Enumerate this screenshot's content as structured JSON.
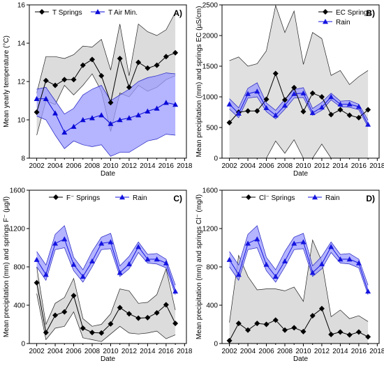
{
  "chart_data": [
    {
      "type": "line",
      "panel_label": "A)",
      "xlabel": "Date",
      "ylabel": "Mean yearly temperature (°C)",
      "xlim": [
        2001.2,
        2018.2
      ],
      "ylim": [
        8,
        16
      ],
      "xticks": [
        2002,
        2004,
        2006,
        2008,
        2010,
        2012,
        2014,
        2016,
        2018
      ],
      "yticks": [
        8,
        10,
        12,
        14,
        16
      ],
      "legend_position": "top-left",
      "series": [
        {
          "name": "T Springs",
          "marker": "diamond",
          "color": "#000000",
          "x": [
            2002,
            2003,
            2004,
            2005,
            2006,
            2007,
            2008,
            2009,
            2010,
            2011,
            2012,
            2013,
            2014,
            2015,
            2016,
            2017
          ],
          "values": [
            10.4,
            12.05,
            11.8,
            12.1,
            12.1,
            12.85,
            13.15,
            12.3,
            10.9,
            13.2,
            11.7,
            13.0,
            12.7,
            12.85,
            13.3,
            13.5
          ],
          "upper": [
            11.4,
            13.3,
            13.3,
            13.2,
            13.4,
            13.85,
            13.8,
            14.2,
            12.6,
            15.0,
            12.3,
            15.0,
            14.6,
            14.4,
            14.7,
            15.6
          ],
          "lower": [
            9.2,
            11.0,
            10.8,
            11.8,
            11.3,
            11.8,
            12.4,
            11.5,
            9.4,
            11.4,
            11.2,
            11.8,
            11.5,
            11.7,
            12.1,
            12.3
          ],
          "band_color": "#dcdcdc"
        },
        {
          "name": "T Air Min.",
          "marker": "triangle",
          "color": "#0a0ad8",
          "x": [
            2002,
            2003,
            2004,
            2005,
            2006,
            2007,
            2008,
            2009,
            2010,
            2011,
            2012,
            2013,
            2014,
            2015,
            2016,
            2017
          ],
          "values": [
            11.1,
            11.1,
            10.35,
            9.35,
            9.65,
            10.0,
            10.1,
            10.25,
            9.8,
            10.0,
            10.1,
            10.25,
            10.45,
            10.6,
            10.9,
            10.8
          ],
          "upper": [
            11.6,
            11.7,
            11.0,
            10.3,
            10.6,
            11.3,
            11.6,
            11.8,
            11.0,
            11.3,
            11.6,
            12.0,
            12.2,
            12.3,
            12.45,
            12.4
          ],
          "lower": [
            10.2,
            10.0,
            9.2,
            8.5,
            8.9,
            8.7,
            8.6,
            8.7,
            8.1,
            8.3,
            8.3,
            8.6,
            8.9,
            9.0,
            9.25,
            9.2
          ],
          "band_color": "#9b9bff"
        }
      ]
    },
    {
      "type": "line",
      "panel_label": "B)",
      "xlabel": "Date",
      "ylabel": "Mean precipitation (mm) and springs EC (µS/cm)",
      "xlim": [
        2001.2,
        2018.2
      ],
      "ylim": [
        0,
        2500
      ],
      "xticks": [
        2002,
        2004,
        2006,
        2008,
        2010,
        2012,
        2014,
        2016,
        2018
      ],
      "yticks": [
        0,
        500,
        1000,
        1500,
        2000,
        2500
      ],
      "legend_position": "top-right",
      "series": [
        {
          "name": "EC Springs",
          "marker": "diamond",
          "color": "#000000",
          "x": [
            2002,
            2003,
            2004,
            2005,
            2006,
            2007,
            2008,
            2009,
            2010,
            2011,
            2012,
            2013,
            2014,
            2015,
            2016,
            2017
          ],
          "values": [
            580,
            750,
            770,
            770,
            960,
            1380,
            950,
            1150,
            760,
            1060,
            1000,
            710,
            790,
            700,
            660,
            790
          ],
          "upper": [
            1590,
            1650,
            1500,
            1540,
            1750,
            2490,
            2050,
            2400,
            1530,
            2050,
            1950,
            1350,
            1430,
            1200,
            1330,
            1430
          ],
          "lower": [
            0,
            0,
            0,
            0,
            0,
            280,
            80,
            300,
            0,
            0,
            230,
            0,
            0,
            0,
            0,
            0
          ],
          "band_color": "#e0e0e0"
        },
        {
          "name": "Rain",
          "marker": "triangle",
          "color": "#1515e0",
          "x": [
            2002,
            2003,
            2004,
            2005,
            2006,
            2007,
            2008,
            2009,
            2010,
            2011,
            2012,
            2013,
            2014,
            2015,
            2016,
            2017
          ],
          "values": [
            880,
            730,
            1050,
            1090,
            820,
            700,
            860,
            1050,
            1060,
            740,
            830,
            1000,
            880,
            880,
            840,
            550
          ],
          "upper": [
            970,
            820,
            1140,
            1230,
            900,
            780,
            960,
            1120,
            1150,
            810,
            910,
            1060,
            930,
            940,
            880,
            620
          ],
          "lower": [
            800,
            660,
            980,
            1000,
            760,
            640,
            800,
            980,
            990,
            700,
            780,
            950,
            840,
            830,
            790,
            510
          ],
          "band_color": "#9b9bff"
        }
      ]
    },
    {
      "type": "line",
      "panel_label": "C)",
      "xlabel": "Date",
      "ylabel": "Mean precipitation (mm) and springs F⁻ (µg/l)",
      "xlim": [
        2001.2,
        2018.2
      ],
      "ylim": [
        0,
        1600
      ],
      "xticks": [
        2002,
        2004,
        2006,
        2008,
        2010,
        2012,
        2014,
        2016,
        2018
      ],
      "yticks": [
        0,
        400,
        800,
        1200,
        1600
      ],
      "legend_position": "top",
      "series": [
        {
          "name": "F⁻ Springs",
          "marker": "diamond",
          "color": "#000000",
          "x": [
            2002,
            2003,
            2004,
            2005,
            2006,
            2007,
            2008,
            2009,
            2010,
            2011,
            2012,
            2013,
            2014,
            2015,
            2016,
            2017
          ],
          "values": [
            635,
            115,
            295,
            330,
            500,
            160,
            115,
            110,
            205,
            375,
            310,
            265,
            270,
            320,
            405,
            210
          ],
          "upper": [
            800,
            200,
            420,
            480,
            680,
            260,
            180,
            200,
            310,
            570,
            550,
            420,
            430,
            510,
            780,
            350
          ],
          "lower": [
            520,
            40,
            160,
            180,
            330,
            60,
            40,
            20,
            100,
            180,
            110,
            100,
            110,
            130,
            50,
            90
          ],
          "band_color": "#dcdcdc"
        },
        {
          "name": "Rain",
          "marker": "triangle",
          "color": "#1515e0",
          "x": [
            2002,
            2003,
            2004,
            2005,
            2006,
            2007,
            2008,
            2009,
            2010,
            2011,
            2012,
            2013,
            2014,
            2015,
            2016,
            2017
          ],
          "values": [
            875,
            720,
            1045,
            1090,
            825,
            700,
            860,
            1045,
            1060,
            740,
            830,
            1010,
            880,
            880,
            840,
            545
          ],
          "upper": [
            960,
            820,
            1140,
            1230,
            900,
            770,
            960,
            1110,
            1150,
            810,
            910,
            1060,
            930,
            940,
            880,
            610
          ],
          "lower": [
            800,
            660,
            980,
            1000,
            760,
            640,
            800,
            980,
            990,
            700,
            780,
            950,
            840,
            830,
            790,
            510
          ],
          "band_color": "#9b9bff"
        }
      ]
    },
    {
      "type": "line",
      "panel_label": "D)",
      "xlabel": "Date",
      "ylabel": "Mean precipitation (mm) and springs Cl⁻ (mg/l)",
      "xlim": [
        2001.2,
        2018.2
      ],
      "ylim": [
        0,
        1600
      ],
      "xticks": [
        2002,
        2004,
        2006,
        2008,
        2010,
        2012,
        2014,
        2016,
        2018
      ],
      "yticks": [
        0,
        400,
        800,
        1200,
        1600
      ],
      "legend_position": "top",
      "series": [
        {
          "name": "Cl⁻ Springs",
          "marker": "diamond",
          "color": "#000000",
          "x": [
            2002,
            2003,
            2004,
            2005,
            2006,
            2007,
            2008,
            2009,
            2010,
            2011,
            2012,
            2013,
            2014,
            2015,
            2016,
            2017
          ],
          "values": [
            30,
            210,
            140,
            210,
            200,
            245,
            140,
            165,
            125,
            290,
            365,
            95,
            120,
            90,
            120,
            70
          ],
          "upper": [
            220,
            920,
            700,
            560,
            570,
            570,
            550,
            590,
            440,
            1080,
            860,
            280,
            350,
            260,
            290,
            230
          ],
          "lower": [
            0,
            0,
            0,
            0,
            0,
            0,
            0,
            0,
            0,
            0,
            0,
            0,
            0,
            0,
            0,
            0
          ],
          "band_color": "#dcdcdc"
        },
        {
          "name": "Rain",
          "marker": "triangle",
          "color": "#1515e0",
          "x": [
            2002,
            2003,
            2004,
            2005,
            2006,
            2007,
            2008,
            2009,
            2010,
            2011,
            2012,
            2013,
            2014,
            2015,
            2016,
            2017
          ],
          "values": [
            875,
            720,
            1045,
            1090,
            825,
            700,
            860,
            1045,
            1060,
            740,
            830,
            1010,
            880,
            880,
            840,
            545
          ],
          "upper": [
            960,
            820,
            1140,
            1230,
            900,
            770,
            960,
            1110,
            1150,
            810,
            910,
            1060,
            930,
            940,
            880,
            610
          ],
          "lower": [
            800,
            660,
            980,
            1000,
            760,
            640,
            800,
            980,
            990,
            700,
            780,
            950,
            840,
            830,
            790,
            510
          ],
          "band_color": "#9b9bff"
        }
      ]
    }
  ]
}
